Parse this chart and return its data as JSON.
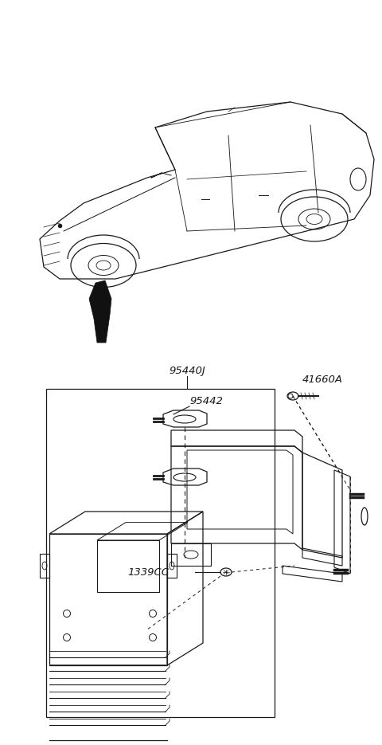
{
  "bg_color": "#ffffff",
  "line_color": "#1a1a1a",
  "labels": {
    "part_group": "95440J",
    "bracket": "95442",
    "screw": "41660A",
    "bolt": "1339CC"
  },
  "label_fontsize": 9.5,
  "label_style": "italic"
}
